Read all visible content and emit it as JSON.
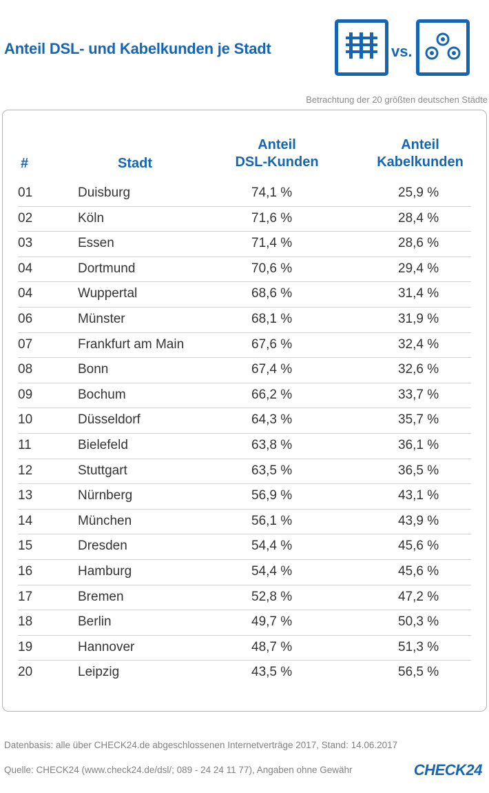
{
  "title": "Anteil DSL- und Kabelkunden je Stadt",
  "vs_label": "vs.",
  "icons": {
    "dsl": "dsl-socket-icon",
    "cable": "cable-socket-icon"
  },
  "subtitle": "Betrachtung der 20 größten deutschen Städte",
  "table": {
    "headers": {
      "num": "#",
      "city": "Stadt",
      "dsl_line1": "Anteil",
      "dsl_line2": "DSL-Kunden",
      "cable_line1": "Anteil",
      "cable_line2": "Kabelkunden"
    },
    "rows": [
      {
        "num": "01",
        "city": "Duisburg",
        "dsl": "74,1 %",
        "cable": "25,9 %"
      },
      {
        "num": "02",
        "city": "Köln",
        "dsl": "71,6 %",
        "cable": "28,4 %"
      },
      {
        "num": "03",
        "city": "Essen",
        "dsl": "71,4 %",
        "cable": "28,6 %"
      },
      {
        "num": "04",
        "city": "Dortmund",
        "dsl": "70,6 %",
        "cable": "29,4 %"
      },
      {
        "num": "04",
        "city": "Wuppertal",
        "dsl": "68,6 %",
        "cable": "31,4 %"
      },
      {
        "num": "06",
        "city": "Münster",
        "dsl": "68,1 %",
        "cable": "31,9 %"
      },
      {
        "num": "07",
        "city": "Frankfurt am Main",
        "dsl": "67,6 %",
        "cable": "32,4 %"
      },
      {
        "num": "08",
        "city": "Bonn",
        "dsl": "67,4 %",
        "cable": "32,6 %"
      },
      {
        "num": "09",
        "city": "Bochum",
        "dsl": "66,2 %",
        "cable": "33,7 %"
      },
      {
        "num": "10",
        "city": "Düsseldorf",
        "dsl": "64,3 %",
        "cable": "35,7 %"
      },
      {
        "num": "11",
        "city": "Bielefeld",
        "dsl": "63,8 %",
        "cable": "36,1 %"
      },
      {
        "num": "12",
        "city": "Stuttgart",
        "dsl": "63,5 %",
        "cable": "36,5 %"
      },
      {
        "num": "13",
        "city": "Nürnberg",
        "dsl": "56,9 %",
        "cable": "43,1 %"
      },
      {
        "num": "14",
        "city": "München",
        "dsl": "56,1 %",
        "cable": "43,9 %"
      },
      {
        "num": "15",
        "city": "Dresden",
        "dsl": "54,4 %",
        "cable": "45,6 %"
      },
      {
        "num": "16",
        "city": "Hamburg",
        "dsl": "54,4 %",
        "cable": "45,6 %"
      },
      {
        "num": "17",
        "city": "Bremen",
        "dsl": "52,8 %",
        "cable": "47,2 %"
      },
      {
        "num": "18",
        "city": "Berlin",
        "dsl": "49,7 %",
        "cable": "50,3 %"
      },
      {
        "num": "19",
        "city": "Hannover",
        "dsl": "48,7 %",
        "cable": "51,3 %"
      },
      {
        "num": "20",
        "city": "Leipzig",
        "dsl": "43,5 %",
        "cable": "56,5 %"
      }
    ]
  },
  "footer": {
    "datenbasis": "Datenbasis: alle über CHECK24.de abgeschlossenen Internetverträge 2017, Stand: 14.06.2017",
    "quelle": "Quelle: CHECK24 (www.check24.de/dsl/; 089 - 24 24 11 77), Angaben ohne Gewähr",
    "brand": "CHECK24"
  },
  "colors": {
    "accent": "#1565b3",
    "text": "#333333",
    "muted": "#808080",
    "rule": "#d2d2d2"
  },
  "chart_data": {
    "type": "table",
    "title": "Anteil DSL- und Kabelkunden je Stadt",
    "subtitle": "Betrachtung der 20 größten deutschen Städte",
    "columns": [
      "#",
      "Stadt",
      "Anteil DSL-Kunden",
      "Anteil Kabelkunden"
    ],
    "categories": [
      "Duisburg",
      "Köln",
      "Essen",
      "Dortmund",
      "Wuppertal",
      "Münster",
      "Frankfurt am Main",
      "Bonn",
      "Bochum",
      "Düsseldorf",
      "Bielefeld",
      "Stuttgart",
      "Nürnberg",
      "München",
      "Dresden",
      "Hamburg",
      "Bremen",
      "Berlin",
      "Hannover",
      "Leipzig"
    ],
    "series": [
      {
        "name": "Anteil DSL-Kunden",
        "values": [
          74.1,
          71.6,
          71.4,
          70.6,
          68.6,
          68.1,
          67.6,
          67.4,
          66.2,
          64.3,
          63.8,
          63.5,
          56.9,
          56.1,
          54.4,
          54.4,
          52.8,
          49.7,
          48.7,
          43.5
        ]
      },
      {
        "name": "Anteil Kabelkunden",
        "values": [
          25.9,
          28.4,
          28.6,
          29.4,
          31.4,
          31.9,
          32.4,
          32.6,
          33.7,
          35.7,
          36.1,
          36.5,
          43.1,
          43.9,
          45.6,
          45.6,
          47.2,
          50.3,
          51.3,
          56.5
        ]
      }
    ]
  }
}
